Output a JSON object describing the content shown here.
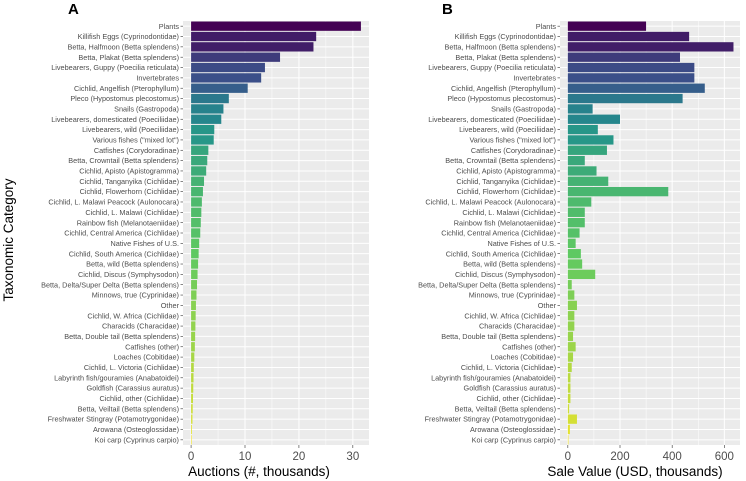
{
  "chart_data": [
    {
      "type": "bar",
      "orientation": "horizontal",
      "panel_label": "A",
      "xlabel": "Auctions (#, thousands)",
      "ylabel": "Taxonomic Category",
      "xlim": [
        -1.5,
        33
      ],
      "xticks": [
        0,
        10,
        20,
        30
      ],
      "grid": true,
      "legend": "none",
      "categories": [
        "Plants",
        "Killifish Eggs (Cyprinodontidae)",
        "Betta, Halfmoon (Betta splendens)",
        "Betta, Plakat (Betta splendens)",
        "Livebearers, Guppy (Poecilia reticulata)",
        "Invertebrates",
        "Cichlid, Angelfish (Pterophyllum)",
        "Pleco (Hypostomus plecostomus)",
        "Snails (Gastropoda)",
        "Livebearers, domesticated (Poeciliidae)",
        "Livebearers, wild (Poeciliidae)",
        "Various fishes (\"mixed lot\")",
        "Catfishes (Corydoradinae)",
        "Betta, Crowntail (Betta splendens)",
        "Cichlid, Apisto (Apistogramma)",
        "Cichlid, Tanganyika (Cichlidae)",
        "Cichlid, Flowerhorn (Cichlidae)",
        "Cichlid, L. Malawi Peacock (Aulonocara)",
        "Cichlid, L. Malawi  (Cichlidae)",
        "Rainbow fish (Melanotaeniidae)",
        "Cichlid, Central America (Cichlidae)",
        "Native Fishes of U.S.",
        "Cichlid, South America (Cichlidae)",
        "Betta, wild (Betta splendens)",
        "Cichlid, Discus (Symphysodon)",
        "Betta, Delta/Super Delta (Betta splendens)",
        "Minnows, true (Cyprinidae)",
        "Other",
        "Cichlid, W. Africa (Cichlidae)",
        "Characids (Characidae)",
        "Betta, Double tail (Betta splendens)",
        "Catfishes (other)",
        "Loaches (Cobitidae)",
        "Cichlid, L. Victoria (Cichlidae)",
        "Labyrinth fish/gouramies (Anabatoidei)",
        "Goldfish (Carassius auratus)",
        "Cichlid, other (Cichlidae)",
        "Betta, Veiltail (Betta splendens)",
        "Freshwater Stingray (Potamotrygonidae)",
        "Arowana (Osteoglossidae)",
        "Koi carp (Cyprinus carpio)"
      ],
      "values": [
        31.5,
        23.2,
        22.7,
        16.5,
        13.7,
        13.0,
        10.5,
        7.0,
        6.0,
        5.6,
        4.3,
        4.2,
        3.2,
        3.0,
        2.8,
        2.4,
        2.2,
        2.0,
        1.9,
        1.8,
        1.7,
        1.5,
        1.4,
        1.3,
        1.2,
        1.1,
        1.0,
        0.9,
        0.85,
        0.8,
        0.75,
        0.7,
        0.6,
        0.5,
        0.45,
        0.4,
        0.35,
        0.3,
        0.25,
        0.15,
        0.05
      ]
    },
    {
      "type": "bar",
      "orientation": "horizontal",
      "panel_label": "B",
      "xlabel": "Sale Value (USD, thousands)",
      "ylabel": "",
      "xlim": [
        -30,
        660
      ],
      "xticks": [
        0,
        200,
        400,
        600
      ],
      "grid": true,
      "legend": "none",
      "color_encoding": "viridis by auction count",
      "categories": [
        "Plants",
        "Killifish Eggs (Cyprinodontidae)",
        "Betta, Halfmoon (Betta splendens)",
        "Betta, Plakat (Betta splendens)",
        "Livebearers, Guppy (Poecilia reticulata)",
        "Invertebrates",
        "Cichlid, Angelfish (Pterophyllum)",
        "Pleco (Hypostomus plecostomus)",
        "Snails (Gastropoda)",
        "Livebearers, domesticated (Poeciliidae)",
        "Livebearers, wild (Poeciliidae)",
        "Various fishes (\"mixed lot\")",
        "Catfishes (Corydoradinae)",
        "Betta, Crowntail (Betta splendens)",
        "Cichlid, Apisto (Apistogramma)",
        "Cichlid, Tanganyika (Cichlidae)",
        "Cichlid, Flowerhorn (Cichlidae)",
        "Cichlid, L. Malawi Peacock (Aulonocara)",
        "Cichlid, L. Malawi  (Cichlidae)",
        "Rainbow fish (Melanotaeniidae)",
        "Cichlid, Central America (Cichlidae)",
        "Native Fishes of U.S.",
        "Cichlid, South America (Cichlidae)",
        "Betta, wild (Betta splendens)",
        "Cichlid, Discus (Symphysodon)",
        "Betta, Delta/Super Delta (Betta splendens)",
        "Minnows, true (Cyprinidae)",
        "Other",
        "Cichlid, W. Africa (Cichlidae)",
        "Characids (Characidae)",
        "Betta, Double tail (Betta splendens)",
        "Catfishes (other)",
        "Loaches (Cobitidae)",
        "Cichlid, L. Victoria (Cichlidae)",
        "Labyrinth fish/gouramies (Anabatoidei)",
        "Goldfish (Carassius auratus)",
        "Cichlid, other (Cichlidae)",
        "Betta, Veiltail (Betta splendens)",
        "Freshwater Stingray (Potamotrygonidae)",
        "Arowana (Osteoglossidae)",
        "Koi carp (Cyprinus carpio)"
      ],
      "values": [
        300,
        465,
        635,
        430,
        485,
        485,
        525,
        440,
        95,
        200,
        115,
        175,
        150,
        65,
        110,
        155,
        385,
        90,
        65,
        65,
        45,
        30,
        50,
        55,
        105,
        15,
        25,
        35,
        25,
        25,
        20,
        30,
        20,
        15,
        10,
        10,
        10,
        5,
        35,
        8,
        2
      ]
    }
  ]
}
